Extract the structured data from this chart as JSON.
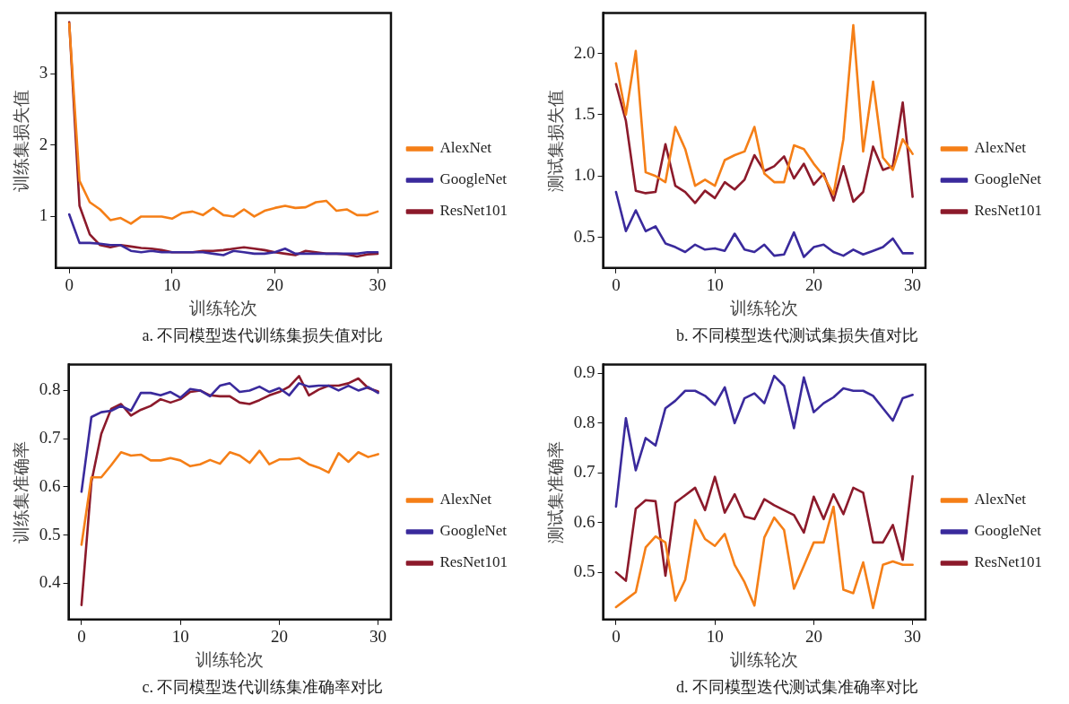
{
  "chart_data": [
    {
      "type": "line",
      "title": "a. 不同模型迭代训练集损失值对比",
      "xlabel": "训练轮次",
      "ylabel": "训练集损失值",
      "x": [
        0,
        1,
        2,
        3,
        4,
        5,
        6,
        7,
        8,
        9,
        10,
        11,
        12,
        13,
        14,
        15,
        16,
        17,
        18,
        19,
        20,
        21,
        22,
        23,
        24,
        25,
        26,
        27,
        28,
        29,
        30
      ],
      "xlim": [
        -1.3,
        31.3
      ],
      "xticks": [
        0,
        10,
        20,
        30
      ],
      "ylim": [
        0.28,
        3.85
      ],
      "yticks": [
        1,
        2,
        3
      ],
      "grid": false,
      "legend": "right",
      "line_style": "solid",
      "marker": "none",
      "series": [
        {
          "name": "AlexNet",
          "color": "#f57f17",
          "values": [
            3.7,
            1.5,
            1.2,
            1.1,
            0.95,
            0.98,
            0.9,
            1.0,
            1.0,
            1.0,
            0.97,
            1.05,
            1.07,
            1.02,
            1.12,
            1.02,
            1.0,
            1.1,
            1.0,
            1.08,
            1.12,
            1.15,
            1.12,
            1.13,
            1.2,
            1.22,
            1.08,
            1.1,
            1.02,
            1.02,
            1.07
          ]
        },
        {
          "name": "GoogleNet",
          "color": "#3a2a9c",
          "values": [
            1.03,
            0.63,
            0.63,
            0.62,
            0.6,
            0.6,
            0.52,
            0.5,
            0.52,
            0.5,
            0.5,
            0.5,
            0.5,
            0.5,
            0.48,
            0.46,
            0.52,
            0.5,
            0.48,
            0.48,
            0.5,
            0.55,
            0.48,
            0.48,
            0.48,
            0.48,
            0.48,
            0.48,
            0.48,
            0.5,
            0.5
          ]
        },
        {
          "name": "ResNet101",
          "color": "#8c1a2b",
          "values": [
            3.72,
            1.15,
            0.75,
            0.6,
            0.57,
            0.6,
            0.58,
            0.56,
            0.55,
            0.53,
            0.5,
            0.5,
            0.5,
            0.52,
            0.52,
            0.53,
            0.55,
            0.57,
            0.55,
            0.53,
            0.5,
            0.48,
            0.46,
            0.52,
            0.5,
            0.48,
            0.48,
            0.47,
            0.44,
            0.47,
            0.48
          ]
        }
      ]
    },
    {
      "type": "line",
      "title": "b. 不同模型迭代测试集损失值对比",
      "xlabel": "训练轮次",
      "ylabel": "测试集损失值",
      "x": [
        0,
        1,
        2,
        3,
        4,
        5,
        6,
        7,
        8,
        9,
        10,
        11,
        12,
        13,
        14,
        15,
        16,
        17,
        18,
        19,
        20,
        21,
        22,
        23,
        24,
        25,
        26,
        27,
        28,
        29,
        30
      ],
      "xlim": [
        -1.3,
        31.3
      ],
      "xticks": [
        0,
        10,
        20,
        30
      ],
      "ylim": [
        0.25,
        2.33
      ],
      "yticks": [
        {
          "value": 0.5,
          "label": "0.5"
        },
        {
          "value": 1,
          "label": "1.0"
        },
        {
          "value": 1.5,
          "label": "1.5"
        },
        {
          "value": 2,
          "label": "2.0"
        }
      ],
      "grid": false,
      "legend": "right",
      "line_style": "solid",
      "marker": "none",
      "series": [
        {
          "name": "AlexNet",
          "color": "#f57f17",
          "values": [
            1.92,
            1.5,
            2.02,
            1.03,
            1.0,
            0.95,
            1.4,
            1.22,
            0.92,
            0.97,
            0.92,
            1.13,
            1.17,
            1.2,
            1.4,
            1.02,
            0.95,
            0.95,
            1.25,
            1.22,
            1.1,
            1.0,
            0.85,
            1.3,
            2.23,
            1.2,
            1.77,
            1.15,
            1.05,
            1.3,
            1.18
          ]
        },
        {
          "name": "GoogleNet",
          "color": "#3a2a9c",
          "values": [
            0.87,
            0.55,
            0.72,
            0.55,
            0.59,
            0.45,
            0.42,
            0.38,
            0.44,
            0.4,
            0.41,
            0.39,
            0.53,
            0.4,
            0.38,
            0.44,
            0.35,
            0.36,
            0.54,
            0.34,
            0.42,
            0.44,
            0.38,
            0.35,
            0.4,
            0.36,
            0.39,
            0.42,
            0.49,
            0.37,
            0.37
          ]
        },
        {
          "name": "ResNet101",
          "color": "#8c1a2b",
          "values": [
            1.75,
            1.45,
            0.88,
            0.86,
            0.87,
            1.26,
            0.92,
            0.87,
            0.78,
            0.88,
            0.82,
            0.95,
            0.89,
            0.97,
            1.17,
            1.04,
            1.08,
            1.16,
            0.98,
            1.1,
            0.93,
            1.02,
            0.8,
            1.08,
            0.79,
            0.87,
            1.24,
            1.05,
            1.08,
            1.6,
            0.83
          ]
        }
      ]
    },
    {
      "type": "line",
      "title": "c. 不同模型迭代训练集准确率对比",
      "xlabel": "训练轮次",
      "ylabel": "训练集准确率",
      "x": [
        0,
        1,
        2,
        3,
        4,
        5,
        6,
        7,
        8,
        9,
        10,
        11,
        12,
        13,
        14,
        15,
        16,
        17,
        18,
        19,
        20,
        21,
        22,
        23,
        24,
        25,
        26,
        27,
        28,
        29,
        30
      ],
      "xlim": [
        -1.3,
        31.3
      ],
      "xticks": [
        0,
        10,
        20,
        30
      ],
      "ylim": [
        0.325,
        0.854
      ],
      "yticks": [
        0.4,
        0.5,
        0.6,
        0.7,
        0.8
      ],
      "grid": false,
      "legend": "right",
      "line_style": "solid",
      "marker": "none",
      "series": [
        {
          "name": "AlexNet",
          "color": "#f57f17",
          "values": [
            0.48,
            0.62,
            0.62,
            0.645,
            0.672,
            0.665,
            0.667,
            0.655,
            0.655,
            0.66,
            0.655,
            0.643,
            0.647,
            0.656,
            0.648,
            0.672,
            0.665,
            0.65,
            0.675,
            0.647,
            0.657,
            0.657,
            0.66,
            0.647,
            0.64,
            0.63,
            0.67,
            0.652,
            0.672,
            0.662,
            0.668
          ]
        },
        {
          "name": "GoogleNet",
          "color": "#3a2a9c",
          "values": [
            0.59,
            0.745,
            0.755,
            0.758,
            0.768,
            0.758,
            0.795,
            0.795,
            0.79,
            0.797,
            0.785,
            0.803,
            0.8,
            0.788,
            0.81,
            0.815,
            0.797,
            0.8,
            0.808,
            0.797,
            0.805,
            0.79,
            0.815,
            0.808,
            0.81,
            0.81,
            0.8,
            0.81,
            0.8,
            0.807,
            0.795
          ]
        },
        {
          "name": "ResNet101",
          "color": "#8c1a2b",
          "values": [
            0.355,
            0.61,
            0.71,
            0.762,
            0.772,
            0.748,
            0.76,
            0.768,
            0.782,
            0.775,
            0.782,
            0.797,
            0.8,
            0.79,
            0.788,
            0.788,
            0.775,
            0.772,
            0.78,
            0.79,
            0.797,
            0.808,
            0.83,
            0.79,
            0.802,
            0.81,
            0.81,
            0.815,
            0.825,
            0.805,
            0.798
          ]
        }
      ]
    },
    {
      "type": "line",
      "title": "d. 不同模型迭代测试集准确率对比",
      "xlabel": "训练轮次",
      "ylabel": "测试集准确率",
      "x": [
        0,
        1,
        2,
        3,
        4,
        5,
        6,
        7,
        8,
        9,
        10,
        11,
        12,
        13,
        14,
        15,
        16,
        17,
        18,
        19,
        20,
        21,
        22,
        23,
        24,
        25,
        26,
        27,
        28,
        29,
        30
      ],
      "xlim": [
        -1.3,
        31.3
      ],
      "xticks": [
        0,
        10,
        20,
        30
      ],
      "ylim": [
        0.405,
        0.918
      ],
      "yticks": [
        0.5,
        0.6,
        0.7,
        0.8,
        0.9
      ],
      "grid": false,
      "legend": "right",
      "line_style": "solid",
      "marker": "none",
      "series": [
        {
          "name": "AlexNet",
          "color": "#f57f17",
          "values": [
            0.43,
            0.445,
            0.46,
            0.55,
            0.572,
            0.56,
            0.443,
            0.485,
            0.605,
            0.567,
            0.553,
            0.577,
            0.515,
            0.48,
            0.433,
            0.57,
            0.61,
            0.585,
            0.467,
            0.513,
            0.56,
            0.56,
            0.632,
            0.465,
            0.458,
            0.52,
            0.428,
            0.515,
            0.522,
            0.515,
            0.515
          ]
        },
        {
          "name": "GoogleNet",
          "color": "#3a2a9c",
          "values": [
            0.632,
            0.81,
            0.705,
            0.77,
            0.755,
            0.83,
            0.845,
            0.865,
            0.865,
            0.855,
            0.837,
            0.872,
            0.8,
            0.85,
            0.86,
            0.84,
            0.895,
            0.875,
            0.79,
            0.892,
            0.822,
            0.84,
            0.852,
            0.87,
            0.865,
            0.865,
            0.855,
            0.83,
            0.805,
            0.85,
            0.857
          ]
        },
        {
          "name": "ResNet101",
          "color": "#8c1a2b",
          "values": [
            0.5,
            0.483,
            0.628,
            0.645,
            0.643,
            0.493,
            0.64,
            0.655,
            0.67,
            0.625,
            0.692,
            0.62,
            0.657,
            0.612,
            0.607,
            0.647,
            0.635,
            0.625,
            0.615,
            0.58,
            0.652,
            0.607,
            0.657,
            0.617,
            0.67,
            0.66,
            0.56,
            0.56,
            0.595,
            0.525,
            0.693
          ]
        }
      ]
    }
  ]
}
